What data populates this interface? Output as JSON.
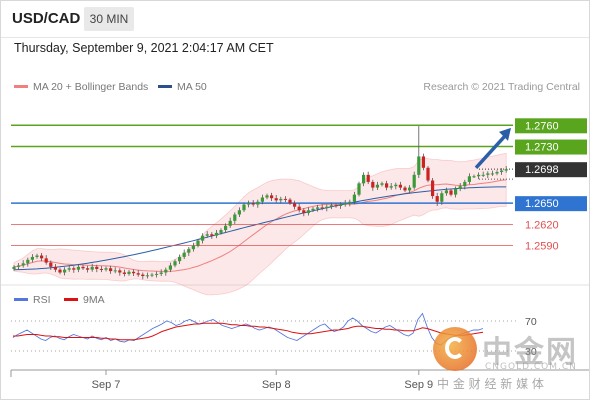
{
  "header": {
    "symbol": "USD/CAD",
    "timeframe": "30 MIN"
  },
  "datetime": "Thursday, September 9, 2021 2:04:17 AM CET",
  "legend": {
    "main": [
      {
        "label": "MA 20 + Bollinger Bands",
        "color": "#f08080"
      },
      {
        "label": "MA 50",
        "color": "#2d4f8e"
      }
    ],
    "rsi": [
      {
        "label": "RSI",
        "color": "#5577dd"
      },
      {
        "label": "9MA",
        "color": "#dd1111"
      }
    ]
  },
  "credit": "Research © 2021 Trading Central",
  "colors": {
    "up": "#3a9a3a",
    "down": "#cc2222",
    "resistance_green": "#5aa51e",
    "support_blue": "#2f74d0",
    "red_level": "#e05050",
    "arrow": "#2a5fa8",
    "current_price_box": "#333333"
  },
  "chart_data": {
    "type": "candlestick",
    "price_axis": {
      "ylim": [
        1.254,
        1.28
      ]
    },
    "x_ticks": [
      {
        "label": "Sep 7",
        "index": 20
      },
      {
        "label": "Sep 8",
        "index": 57
      },
      {
        "label": "Sep 9",
        "index": 88
      }
    ],
    "levels": [
      {
        "value": 1.276,
        "label": "1.2760",
        "style": "green"
      },
      {
        "value": 1.273,
        "label": "1.2730",
        "style": "green"
      },
      {
        "value": 1.2698,
        "label": "1.2698",
        "style": "current"
      },
      {
        "value": 1.265,
        "label": "1.2650",
        "style": "blue"
      },
      {
        "value": 1.262,
        "label": "1.2620",
        "style": "red"
      },
      {
        "value": 1.259,
        "label": "1.2590",
        "style": "red"
      }
    ],
    "forecast_arrow": {
      "from_index": 100,
      "from_price": 1.27,
      "to_price": 1.2762
    },
    "closes": [
      1.256,
      1.2562,
      1.2565,
      1.257,
      1.2574,
      1.2576,
      1.2572,
      1.2566,
      1.256,
      1.2556,
      1.2552,
      1.2556,
      1.2558,
      1.2556,
      1.256,
      1.2558,
      1.2556,
      1.256,
      1.2557,
      1.2556,
      1.2558,
      1.2554,
      1.2555,
      1.2552,
      1.255,
      1.2553,
      1.2551,
      1.2549,
      1.2547,
      1.2548,
      1.2549,
      1.255,
      1.2552,
      1.2556,
      1.2562,
      1.2568,
      1.2574,
      1.258,
      1.2585,
      1.259,
      1.2597,
      1.2604,
      1.2606,
      1.2604,
      1.2608,
      1.2612,
      1.2618,
      1.2625,
      1.2634,
      1.264,
      1.2648,
      1.265,
      1.2648,
      1.2652,
      1.2658,
      1.2661,
      1.2657,
      1.2654,
      1.2656,
      1.2655,
      1.265,
      1.2645,
      1.264,
      1.2636,
      1.264,
      1.2642,
      1.2644,
      1.2643,
      1.2645,
      1.2647,
      1.2646,
      1.2648,
      1.265,
      1.2652,
      1.2662,
      1.2678,
      1.269,
      1.268,
      1.2672,
      1.2676,
      1.2678,
      1.2672,
      1.2674,
      1.2676,
      1.2672,
      1.2668,
      1.2672,
      1.269,
      1.2716,
      1.27,
      1.2682,
      1.266,
      1.2652,
      1.2664,
      1.2668,
      1.2662,
      1.267,
      1.2674,
      1.268,
      1.2688,
      1.2688,
      1.269,
      1.269,
      1.2692,
      1.2692,
      1.2694,
      1.2696,
      1.2698
    ],
    "ma50_endpoints": {
      "start": 1.2556,
      "end": 1.2673
    },
    "rsi_panel": {
      "levels": [
        {
          "value": 70,
          "label": "70"
        },
        {
          "value": 30,
          "label": "30"
        }
      ],
      "rsi": [
        48,
        52,
        55,
        58,
        54,
        50,
        46,
        44,
        48,
        50,
        47,
        45,
        49,
        52,
        50,
        48,
        46,
        50,
        47,
        45,
        48,
        44,
        46,
        43,
        42,
        45,
        44,
        48,
        52,
        56,
        60,
        63,
        66,
        70,
        68,
        64,
        66,
        70,
        72,
        69,
        66,
        68,
        70,
        72,
        68,
        64,
        62,
        60,
        62,
        64,
        66,
        64,
        60,
        58,
        60,
        62,
        60,
        56,
        52,
        48,
        46,
        44,
        48,
        52,
        56,
        60,
        64,
        66,
        60,
        56,
        58,
        62,
        70,
        74,
        70,
        64,
        60,
        56,
        54,
        58,
        62,
        64,
        60,
        56,
        52,
        50,
        54,
        72,
        80,
        62,
        48,
        40,
        38,
        44,
        48,
        50,
        52,
        54,
        56,
        58,
        58,
        60
      ],
      "ma9": [
        50,
        50,
        51,
        52,
        52,
        52,
        51,
        50,
        50,
        49,
        49,
        48,
        48,
        48,
        48,
        48,
        48,
        48,
        48,
        47,
        47,
        46,
        46,
        45,
        45,
        45,
        45,
        46,
        47,
        48,
        50,
        53,
        56,
        58,
        60,
        62,
        63,
        64,
        65,
        66,
        66,
        67,
        67,
        67,
        67,
        67,
        66,
        65,
        65,
        64,
        64,
        63,
        63,
        62,
        62,
        61,
        60,
        59,
        58,
        57,
        55,
        54,
        53,
        53,
        53,
        54,
        55,
        56,
        57,
        58,
        58,
        59,
        60,
        62,
        63,
        63,
        62,
        61,
        60,
        60,
        59,
        59,
        58,
        58,
        57,
        57,
        57,
        59,
        61,
        60,
        58,
        56,
        54,
        53,
        52,
        51,
        51,
        51,
        52,
        53,
        54,
        55
      ]
    }
  },
  "watermark": {
    "brand": "中金网",
    "domain": "CNGOLD.COM.CN",
    "tagline": "中 金 财 经 新 媒 体"
  }
}
